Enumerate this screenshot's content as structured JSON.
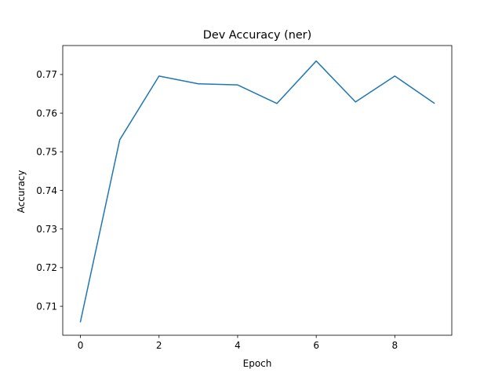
{
  "chart_data": {
    "type": "line",
    "title": "Dev Accuracy (ner)",
    "xlabel": "Epoch",
    "ylabel": "Accuracy",
    "xlim": [
      -0.45,
      9.45
    ],
    "ylim": [
      0.7025,
      0.7775
    ],
    "xticks": [
      0,
      2,
      4,
      6,
      8
    ],
    "xtick_labels": [
      "0",
      "2",
      "4",
      "6",
      "8"
    ],
    "yticks": [
      0.71,
      0.72,
      0.73,
      0.74,
      0.75,
      0.76,
      0.77
    ],
    "ytick_labels": [
      "0.71",
      "0.72",
      "0.73",
      "0.74",
      "0.75",
      "0.76",
      "0.77"
    ],
    "grid": false,
    "legend": "none",
    "series": [
      {
        "color": "#1f77b4",
        "x": [
          0,
          1,
          2,
          3,
          4,
          5,
          6,
          7,
          8,
          9
        ],
        "y": [
          0.706,
          0.7531,
          0.7696,
          0.7676,
          0.7673,
          0.7625,
          0.7735,
          0.7629,
          0.7696,
          0.7626
        ]
      }
    ]
  }
}
